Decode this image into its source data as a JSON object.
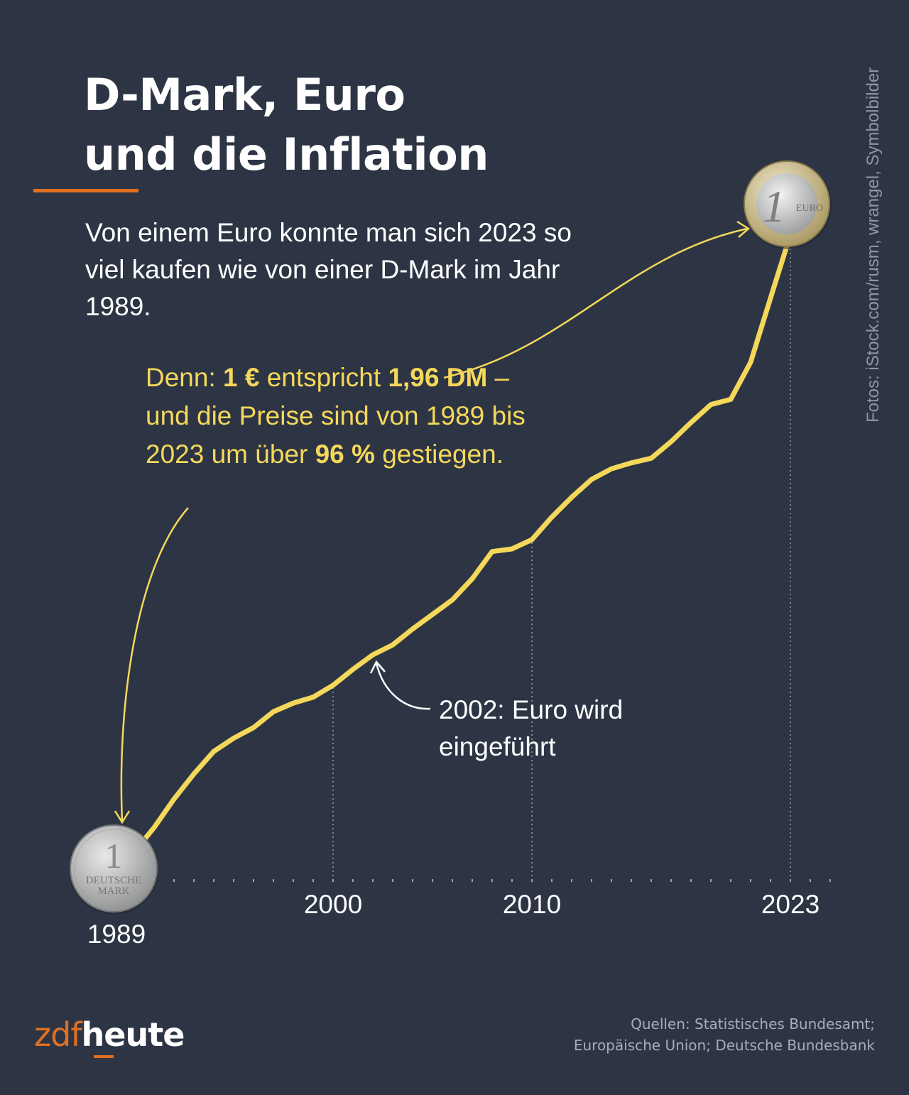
{
  "title_lines": [
    "D-Mark, Euro",
    "und die Inflation"
  ],
  "subtitle": "Von einem Euro konnte man sich 2023 so viel kaufen wie von einer D-Mark im Jahr 1989.",
  "note": {
    "p1": "Denn: ",
    "b1": "1 €",
    "p2": " entspricht ",
    "b2": "1,96 DM",
    "p3": " – und die Preise sind von 1989 bis 2023 um über ",
    "b3": "96 %",
    "p4": " gestiegen."
  },
  "euro_annotation": "2002: Euro wird eingeführt",
  "photo_credit": "Fotos: iStock.com/rusm, wrangel, Symbolbilder",
  "sources": [
    "Quellen: Statistisches Bundesamt;",
    "Europäische Union; Deutsche Bundesbank"
  ],
  "logo": {
    "part1": "zdf",
    "part2": "heute"
  },
  "colors": {
    "background": "#2d3545",
    "line": "#f5d85a",
    "accent": "#e07020"
  },
  "coins": {
    "start": "1 Deutsche Mark coin",
    "end": "1 Euro coin"
  },
  "chart_data": {
    "type": "line",
    "title": "D-Mark, Euro und die Inflation",
    "x_tick_labels": [
      "1989",
      "2000",
      "2010",
      "2023"
    ],
    "xlim": [
      1989,
      2023
    ],
    "grid": "dotted verticals at 2000, 2010, 2023",
    "x": [
      1989,
      1990,
      1991,
      1992,
      1993,
      1994,
      1995,
      1996,
      1997,
      1998,
      1999,
      2000,
      2001,
      2002,
      2003,
      2004,
      2005,
      2006,
      2007,
      2008,
      2009,
      2010,
      2011,
      2012,
      2013,
      2014,
      2015,
      2016,
      2017,
      2018,
      2019,
      2020,
      2021,
      2022,
      2023
    ],
    "values": [
      100,
      102.7,
      106.4,
      110.7,
      114.5,
      117.9,
      119.9,
      121.5,
      123.9,
      125.2,
      126.1,
      127.9,
      130.3,
      132.5,
      134.0,
      136.4,
      138.6,
      140.8,
      144.0,
      148.1,
      148.5,
      149.9,
      153.3,
      156.3,
      159.0,
      160.6,
      161.5,
      162.2,
      164.7,
      167.6,
      170.3,
      171.1,
      176.7,
      186.4,
      196.0
    ]
  }
}
